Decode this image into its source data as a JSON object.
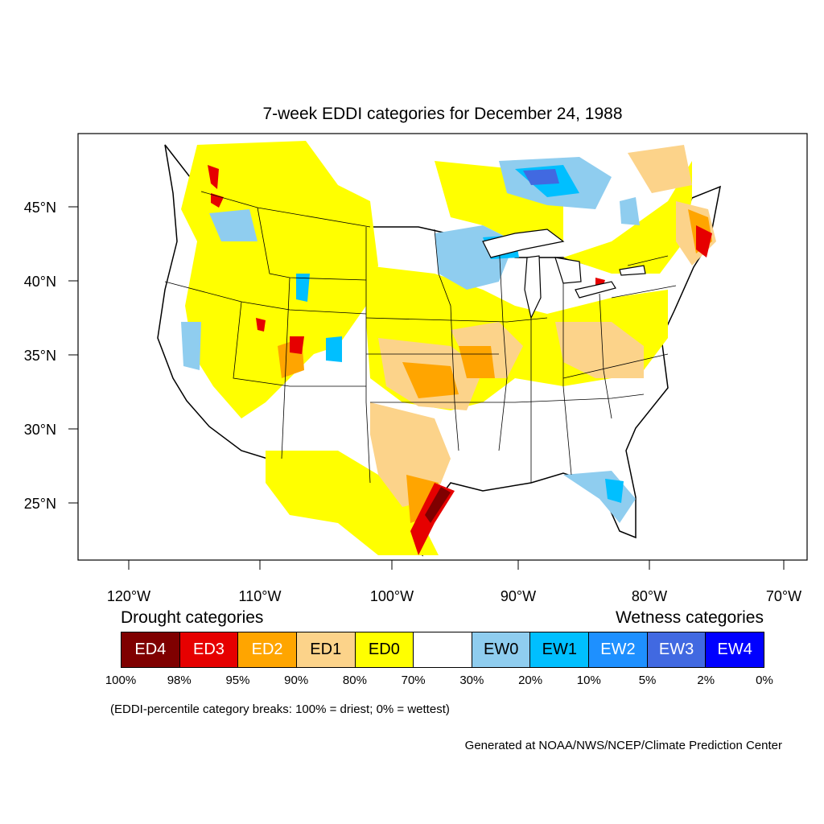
{
  "title": "7-week EDDI categories for December 24, 1988",
  "map": {
    "lat_ticks": [
      "45°N",
      "40°N",
      "35°N",
      "30°N",
      "25°N"
    ],
    "lon_ticks": [
      "120°W",
      "110°W",
      "100°W",
      "90°W",
      "80°W",
      "70°W"
    ]
  },
  "legend": {
    "drought_heading": "Drought categories",
    "wetness_heading": "Wetness categories",
    "categories": [
      {
        "label": "ED4",
        "color": "#7f0000",
        "text_color": "#ffffff"
      },
      {
        "label": "ED3",
        "color": "#e60000",
        "text_color": "#ffffff"
      },
      {
        "label": "ED2",
        "color": "#ffa500",
        "text_color": "#ffffff"
      },
      {
        "label": "ED1",
        "color": "#fcd38a",
        "text_color": "#000000"
      },
      {
        "label": "ED0",
        "color": "#ffff00",
        "text_color": "#000000"
      },
      {
        "label": "",
        "color": "#ffffff",
        "text_color": "#000000"
      },
      {
        "label": "EW0",
        "color": "#8fcdef",
        "text_color": "#000000"
      },
      {
        "label": "EW1",
        "color": "#00bfff",
        "text_color": "#000000"
      },
      {
        "label": "EW2",
        "color": "#1e90ff",
        "text_color": "#ffffff"
      },
      {
        "label": "EW3",
        "color": "#4169e1",
        "text_color": "#ffffff"
      },
      {
        "label": "EW4",
        "color": "#0000ff",
        "text_color": "#ffffff"
      }
    ],
    "breaks": [
      "100%",
      "98%",
      "95%",
      "90%",
      "80%",
      "70%",
      "30%",
      "20%",
      "10%",
      "5%",
      "2%",
      "0%"
    ],
    "note": "(EDDI-percentile category breaks: 100% = driest; 0% = wettest)"
  },
  "credit": "Generated at NOAA/NWS/NCEP/Climate Prediction Center"
}
